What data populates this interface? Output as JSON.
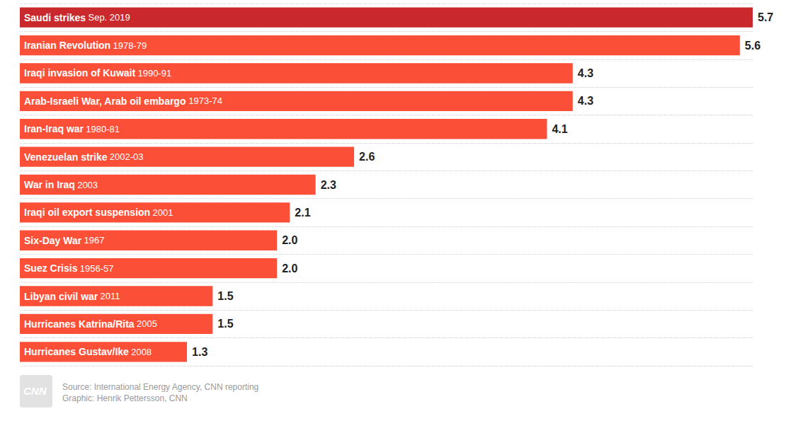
{
  "chart_data": {
    "type": "bar",
    "orientation": "horizontal",
    "categories": [
      "Saudi strikes",
      "Iranian Revolution",
      "Iraqi invasion of Kuwait",
      "Arab-Israeli War, Arab oil embargo",
      "Iran-Iraq war",
      "Venezuelan strike",
      "War in Iraq",
      "Iraqi oil export suspension",
      "Six-Day War",
      "Suez Crisis",
      "Libyan civil war",
      "Hurricanes Katrina/Rita",
      "Hurricanes Gustav/Ike"
    ],
    "periods": [
      "Sep. 2019",
      "1978-79",
      "1990-91",
      "1973-74",
      "1980-81",
      "2002-03",
      "2003",
      "2001",
      "1967",
      "1956-57",
      "2011",
      "2005",
      "2008"
    ],
    "values": [
      5.7,
      5.6,
      4.3,
      4.3,
      4.1,
      2.6,
      2.3,
      2.1,
      2.0,
      2.0,
      1.5,
      1.5,
      1.3
    ],
    "value_labels": [
      "5.7",
      "5.6",
      "4.3",
      "4.3",
      "4.1",
      "2.6",
      "2.3",
      "2.1",
      "2.0",
      "2.0",
      "1.5",
      "1.5",
      "1.3"
    ],
    "colors": [
      "#c9282d",
      "#fc4f38",
      "#fc4f38",
      "#fc4f38",
      "#fc4f38",
      "#fc4f38",
      "#fc4f38",
      "#fc4f38",
      "#fc4f38",
      "#fc4f38",
      "#fc4f38",
      "#fc4f38",
      "#fc4f38"
    ],
    "xlim": [
      0,
      5.7
    ],
    "grid": true,
    "data_labels": true,
    "tick_labels": "y",
    "logo": "CNN",
    "source": "Source: International Energy Agency, CNN reporting",
    "credit": "Graphic: Henrik Pettersson, CNN"
  }
}
